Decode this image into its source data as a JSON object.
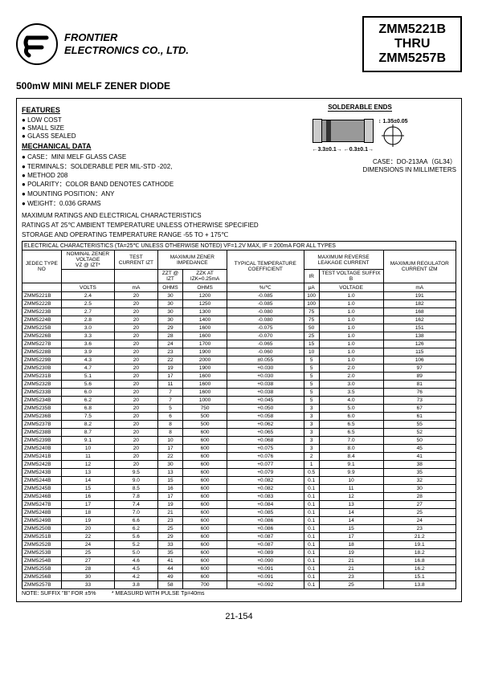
{
  "company": "FRONTIER\nELECTRONICS CO., LTD.",
  "partFrom": "ZMM5221B",
  "partThru": "THRU",
  "partTo": "ZMM5257B",
  "title": "500mW MINI MELF ZENER DIODE",
  "featuresHeading": "FEATURES",
  "features": [
    "LOW COST",
    "SMALL SIZE",
    "GLASS SEALED"
  ],
  "mechHeading": "MECHANICAL DATA",
  "mech": [
    "CASE：MINI MELF GLASS CASE",
    "TERMINALS：SOLDERABLE PER MIL-STD -202,",
    "                          METHOD 208",
    "POLARITY：COLOR BAND DENOTES CATHODE",
    "MOUNTING POSITION：ANY",
    "WEIGHT：0.036 GRAMS"
  ],
  "solderLabel": "SOLDERABLE ENDS",
  "dim1": "1.35±0.05",
  "dim2": "3.3±0.1",
  "dim3": "0.3±0.1",
  "caseNote": "CASE：DO-213AA（GL34）",
  "dimNote": "DIMENSIONS IN MILLIMETERS",
  "ratingsLine1": "MAXIMUM RATINGS AND ELECTRICAL CHARACTERISTICS",
  "ratingsLine2": "RATINGS AT 25℃ AMBIENT TEMPERATURE UNLESS OTHERWISE SPECIFIED",
  "ratingsLine3": "STORAGE AND OPERATING TEMPERATURE RANGE -55 TO + 175℃",
  "tableTitle": "ELECTRICAL CHARACTERISTICS (TA=25℃ UNLESS OTHERWISE NOTED) VF=1.2V MAX, IF = 200mA FOR ALL TYPES",
  "headers": {
    "jedec": "JEDEC TYPE NO",
    "vz": "NOMINAL ZENER VOLTAGE",
    "vzsub": "VZ @ IZT*",
    "izt": "TEST CURRENT IZT",
    "impedance": "MAXIMUM ZENER IMPEDANCE",
    "zzt": "ZZT @ IZT",
    "zzk": "ZZK AT IZK=0.25mA",
    "temp": "TYPICAL TEMPERATURE COEFFICIENT",
    "leak": "MAXIMUM REVERSE LEAKAGE CURRENT",
    "ir": "IR",
    "testv": "TEST VOLTAGE SUFFIX B",
    "reg": "MAXIMUM REGULATOR CURRENT IZM"
  },
  "units": [
    "",
    "VOLTS",
    "mA",
    "OHMS",
    "OHMS",
    "%/℃",
    "μA",
    "VOLTAGE",
    "mA"
  ],
  "rows": [
    [
      "ZMM5221B",
      "2.4",
      "20",
      "30",
      "1200",
      "-0.085",
      "100",
      "1.0",
      "191"
    ],
    [
      "ZMM5222B",
      "2.5",
      "20",
      "30",
      "1250",
      "-0.085",
      "100",
      "1.0",
      "182"
    ],
    [
      "ZMM5223B",
      "2.7",
      "20",
      "30",
      "1300",
      "-0.080",
      "75",
      "1.0",
      "168"
    ],
    [
      "ZMM5224B",
      "2.8",
      "20",
      "30",
      "1400",
      "-0.080",
      "75",
      "1.0",
      "162"
    ],
    [
      "ZMM5225B",
      "3.0",
      "20",
      "29",
      "1600",
      "-0.075",
      "50",
      "1.0",
      "151"
    ],
    [
      "ZMM5226B",
      "3.3",
      "20",
      "28",
      "1600",
      "-0.070",
      "25",
      "1.0",
      "138"
    ],
    [
      "ZMM5227B",
      "3.6",
      "20",
      "24",
      "1700",
      "-0.065",
      "15",
      "1.0",
      "126"
    ],
    [
      "ZMM5228B",
      "3.9",
      "20",
      "23",
      "1900",
      "-0.060",
      "10",
      "1.0",
      "115"
    ],
    [
      "ZMM5229B",
      "4.3",
      "20",
      "22",
      "2000",
      "±0.055",
      "5",
      "1.0",
      "106"
    ],
    [
      "ZMM5230B",
      "4.7",
      "20",
      "19",
      "1900",
      "+0.030",
      "5",
      "2.0",
      "97"
    ],
    [
      "ZMM5231B",
      "5.1",
      "20",
      "17",
      "1600",
      "+0.030",
      "5",
      "2.0",
      "89"
    ],
    [
      "ZMM5232B",
      "5.6",
      "20",
      "11",
      "1600",
      "+0.038",
      "5",
      "3.0",
      "81"
    ],
    [
      "ZMM5233B",
      "6.0",
      "20",
      "7",
      "1600",
      "+0.038",
      "5",
      "3.5",
      "76"
    ],
    [
      "ZMM5234B",
      "6.2",
      "20",
      "7",
      "1000",
      "+0.045",
      "5",
      "4.0",
      "73"
    ],
    [
      "ZMM5235B",
      "6.8",
      "20",
      "5",
      "750",
      "+0.050",
      "3",
      "5.0",
      "67"
    ],
    [
      "ZMM5236B",
      "7.5",
      "20",
      "6",
      "500",
      "+0.058",
      "3",
      "6.0",
      "61"
    ],
    [
      "ZMM5237B",
      "8.2",
      "20",
      "8",
      "500",
      "+0.062",
      "3",
      "6.5",
      "55"
    ],
    [
      "ZMM5238B",
      "8.7",
      "20",
      "8",
      "600",
      "+0.065",
      "3",
      "6.5",
      "52"
    ],
    [
      "ZMM5239B",
      "9.1",
      "20",
      "10",
      "600",
      "+0.068",
      "3",
      "7.0",
      "50"
    ],
    [
      "ZMM5240B",
      "10",
      "20",
      "17",
      "600",
      "+0.075",
      "3",
      "8.0",
      "45"
    ],
    [
      "ZMM5241B",
      "11",
      "20",
      "22",
      "600",
      "+0.076",
      "2",
      "8.4",
      "41"
    ],
    [
      "ZMM5242B",
      "12",
      "20",
      "30",
      "600",
      "+0.077",
      "1",
      "9.1",
      "38"
    ],
    [
      "ZMM5243B",
      "13",
      "9.5",
      "13",
      "600",
      "+0.079",
      "0.5",
      "9.9",
      "35"
    ],
    [
      "ZMM5244B",
      "14",
      "9.0",
      "15",
      "600",
      "+0.082",
      "0.1",
      "10",
      "32"
    ],
    [
      "ZMM5245B",
      "15",
      "8.5",
      "16",
      "600",
      "+0.082",
      "0.1",
      "11",
      "30"
    ],
    [
      "ZMM5246B",
      "16",
      "7.8",
      "17",
      "600",
      "+0.083",
      "0.1",
      "12",
      "28"
    ],
    [
      "ZMM5247B",
      "17",
      "7.4",
      "19",
      "600",
      "+0.084",
      "0.1",
      "13",
      "27"
    ],
    [
      "ZMM5248B",
      "18",
      "7.0",
      "21",
      "600",
      "+0.085",
      "0.1",
      "14",
      "25"
    ],
    [
      "ZMM5249B",
      "19",
      "6.6",
      "23",
      "600",
      "+0.086",
      "0.1",
      "14",
      "24"
    ],
    [
      "ZMM5250B",
      "20",
      "6.2",
      "25",
      "600",
      "+0.086",
      "0.1",
      "15",
      "23"
    ],
    [
      "ZMM5251B",
      "22",
      "5.6",
      "29",
      "600",
      "+0.087",
      "0.1",
      "17",
      "21.2"
    ],
    [
      "ZMM5252B",
      "24",
      "5.2",
      "33",
      "600",
      "+0.087",
      "0.1",
      "18",
      "19.1"
    ],
    [
      "ZMM5253B",
      "25",
      "5.0",
      "35",
      "600",
      "+0.089",
      "0.1",
      "19",
      "18.2"
    ],
    [
      "ZMM5254B",
      "27",
      "4.6",
      "41",
      "600",
      "+0.090",
      "0.1",
      "21",
      "16.8"
    ],
    [
      "ZMM5255B",
      "28",
      "4.5",
      "44",
      "600",
      "+0.091",
      "0.1",
      "21",
      "16.2"
    ],
    [
      "ZMM5256B",
      "30",
      "4.2",
      "49",
      "600",
      "+0.091",
      "0.1",
      "23",
      "15.1"
    ],
    [
      "ZMM5257B",
      "33",
      "3.8",
      "58",
      "700",
      "+0.092",
      "0.1",
      "25",
      "13.8"
    ]
  ],
  "note1": "NOTE: SUFFIX \"B\" FOR ±5%",
  "note2": "* MEASURD WITH PULSE Tp=40ms",
  "pageNum": "21-154"
}
